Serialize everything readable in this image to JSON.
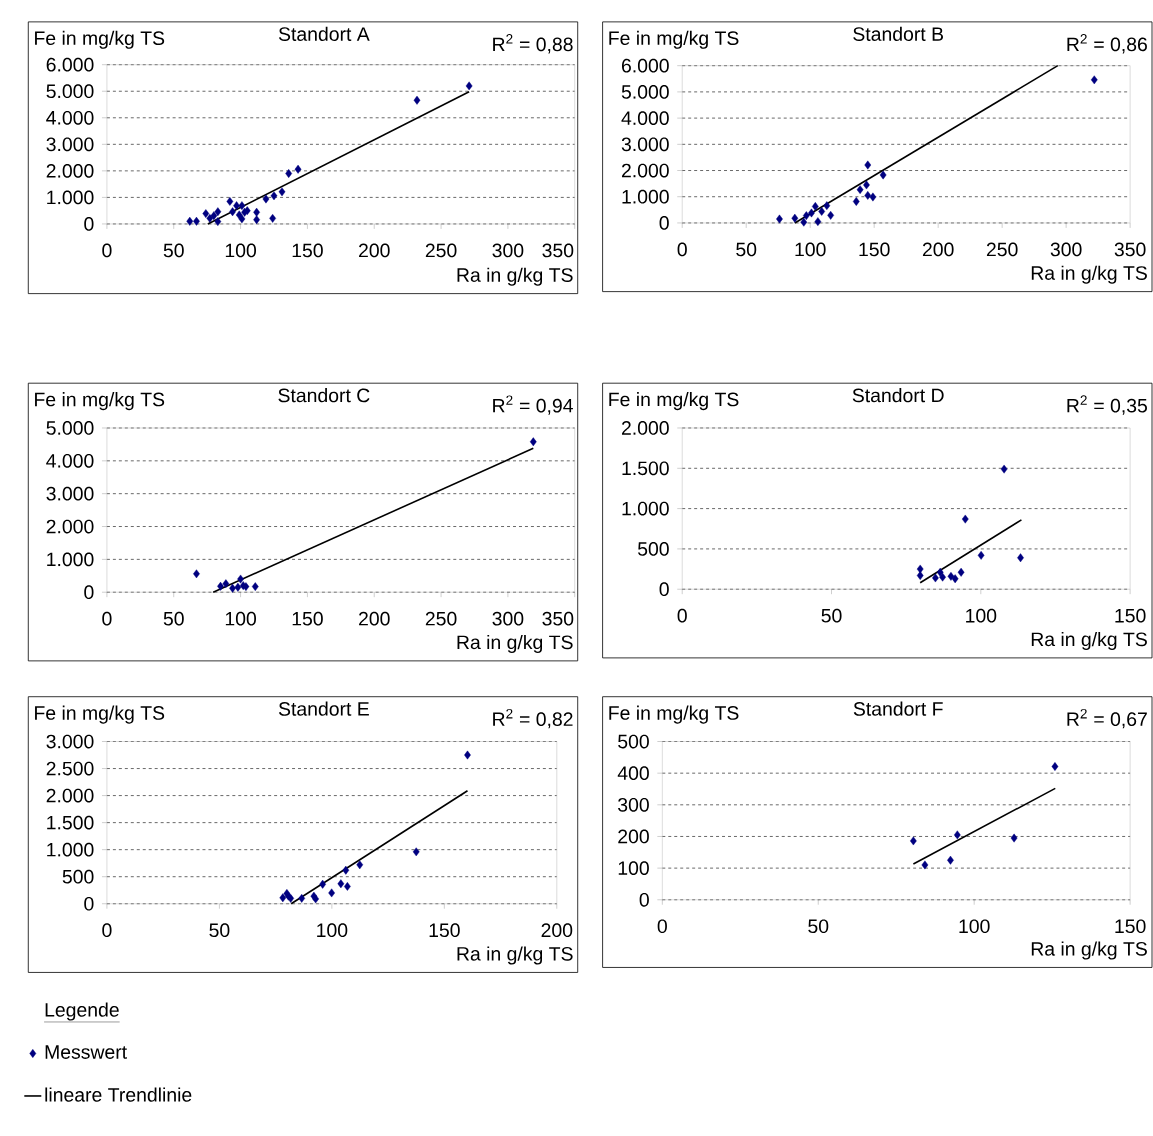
{
  "chart_data": [
    {
      "type": "scatter",
      "title": "Standort A",
      "xlabel": "Ra in g/kg TS",
      "ylabel": "Fe in mg/kg TS",
      "annotations": [
        "R$^{2}$ = 0,88"
      ],
      "legend": "bottom",
      "legend_title": "Legende",
      "grid": "y",
      "xlim": [
        0,
        350
      ],
      "xticks": [
        0,
        50,
        100,
        150,
        200,
        250,
        300,
        350
      ],
      "ylim": [
        0,
        6000
      ],
      "yticks": [
        0,
        {
          "value": 1000,
          "label": "1.000"
        },
        {
          "value": 2000,
          "label": "2.000"
        },
        {
          "value": 3000,
          "label": "3.000"
        },
        {
          "value": 4000,
          "label": "4.000"
        },
        {
          "value": 5000,
          "label": "5.000"
        },
        {
          "value": 6000,
          "label": "6.000"
        }
      ],
      "series": [
        {
          "name": "Messwert",
          "marker": "diamond",
          "color": "#000080",
          "x": [
            62,
            67,
            74,
            77,
            80,
            83,
            83,
            92,
            94,
            97,
            99,
            101,
            101,
            103,
            105,
            112,
            112,
            119,
            124,
            125,
            131,
            136,
            143,
            232,
            271
          ],
          "values": [
            100,
            100,
            390,
            210,
            310,
            460,
            90,
            850,
            460,
            690,
            340,
            690,
            190,
            440,
            500,
            160,
            440,
            940,
            210,
            1060,
            1210,
            1900,
            2060,
            4660,
            5200
          ]
        },
        {
          "name": "lineare Trendlinie",
          "type": "line",
          "color": "#000000",
          "line_style": "solid",
          "x": [
            75.5,
            271
          ],
          "values": [
            0,
            4980
          ]
        }
      ]
    },
    {
      "type": "scatter",
      "title": "Standort B",
      "xlabel": "Ra in g/kg TS",
      "ylabel": "Fe in mg/kg TS",
      "annotations": [
        "R$^{2}$ = 0,86"
      ],
      "grid": "y",
      "xlim": [
        0,
        350
      ],
      "xticks": [
        0,
        50,
        100,
        150,
        200,
        250,
        300,
        350
      ],
      "ylim": [
        0,
        6000
      ],
      "yticks": [
        0,
        {
          "value": 1000,
          "label": "1.000"
        },
        {
          "value": 2000,
          "label": "2.000"
        },
        {
          "value": 3000,
          "label": "3.000"
        },
        {
          "value": 4000,
          "label": "4.000"
        },
        {
          "value": 5000,
          "label": "5.000"
        },
        {
          "value": 6000,
          "label": "6.000"
        }
      ],
      "series": [
        {
          "marker": "diamond",
          "color": "#000080",
          "x": [
            76,
            88,
            95,
            97,
            101,
            104,
            106,
            109,
            113,
            116,
            136,
            139,
            144,
            145,
            145,
            149,
            157,
            322
          ],
          "values": [
            150,
            180,
            30,
            280,
            380,
            630,
            50,
            440,
            660,
            290,
            820,
            1270,
            1450,
            2210,
            1050,
            990,
            1830,
            5460
          ]
        },
        {
          "type": "line",
          "color": "#000000",
          "line_style": "solid",
          "x": [
            88,
            293.5
          ],
          "values": [
            0,
            6000
          ]
        }
      ]
    },
    {
      "type": "scatter",
      "title": "Standort C",
      "xlabel": "Ra in g/kg TS",
      "ylabel": "Fe in mg/kg TS",
      "annotations": [
        "R$^{2}$ = 0,94"
      ],
      "grid": "y",
      "xlim": [
        0,
        350
      ],
      "xticks": [
        0,
        50,
        100,
        150,
        200,
        250,
        300,
        350
      ],
      "ylim": [
        0,
        5000
      ],
      "yticks": [
        0,
        {
          "value": 1000,
          "label": "1.000"
        },
        {
          "value": 2000,
          "label": "2.000"
        },
        {
          "value": 3000,
          "label": "3.000"
        },
        {
          "value": 4000,
          "label": "4.000"
        },
        {
          "value": 5000,
          "label": "5.000"
        }
      ],
      "series": [
        {
          "marker": "diamond",
          "color": "#000080",
          "x": [
            67,
            85,
            89,
            94,
            98,
            100,
            102,
            104,
            111,
            319
          ],
          "values": [
            560,
            180,
            260,
            120,
            150,
            400,
            200,
            170,
            170,
            4580
          ]
        },
        {
          "type": "line",
          "color": "#000000",
          "line_style": "solid",
          "x": [
            79.5,
            319
          ],
          "values": [
            0,
            4380
          ]
        }
      ]
    },
    {
      "type": "scatter",
      "title": "Standort D",
      "xlabel": "Ra in g/kg TS",
      "ylabel": "Fe in mg/kg TS",
      "annotations": [
        "R$^{2}$ = 0,35"
      ],
      "grid": "y",
      "xlim": [
        0,
        150
      ],
      "xticks": [
        0,
        50,
        100,
        150
      ],
      "ylim": [
        0,
        2000
      ],
      "yticks": [
        0,
        500,
        {
          "value": 1000,
          "label": "1.000"
        },
        {
          "value": 1500,
          "label": "1.500"
        },
        {
          "value": 2000,
          "label": "2.000"
        }
      ],
      "series": [
        {
          "marker": "diamond",
          "color": "#000080",
          "x": [
            79.7,
            79.7,
            84.8,
            86.4,
            87.2,
            90,
            91.4,
            93.4,
            94.8,
            100.1,
            107.8,
            113.3
          ],
          "values": [
            250,
            170,
            140,
            210,
            150,
            160,
            130,
            210,
            870,
            420,
            1490,
            390
          ]
        },
        {
          "type": "line",
          "color": "#000000",
          "line_style": "solid",
          "x": [
            79.7,
            113.6
          ],
          "values": [
            80,
            860
          ]
        }
      ]
    },
    {
      "type": "scatter",
      "title": "Standort E",
      "xlabel": "Ra in g/kg TS",
      "ylabel": "Fe in mg/kg TS",
      "annotations": [
        "R$^{2}$ = 0,82"
      ],
      "grid": "y",
      "xlim": [
        0,
        200
      ],
      "xticks": [
        0,
        50,
        100,
        150,
        200
      ],
      "ylim": [
        0,
        3000
      ],
      "yticks": [
        0,
        500,
        {
          "value": 1000,
          "label": "1.000"
        },
        {
          "value": 1500,
          "label": "1.500"
        },
        {
          "value": 2000,
          "label": "2.000"
        },
        {
          "value": 2500,
          "label": "2.500"
        },
        {
          "value": 3000,
          "label": "3.000"
        }
      ],
      "series": [
        {
          "marker": "diamond",
          "color": "#000080",
          "x": [
            78.2,
            80,
            80.7,
            81.7,
            86.6,
            92,
            92.8,
            95.9,
            99.9,
            104,
            106.2,
            106.9,
            112.4,
            137.5,
            160.3
          ],
          "values": [
            110,
            190,
            140,
            100,
            100,
            140,
            90,
            360,
            200,
            370,
            620,
            320,
            720,
            960,
            2750
          ]
        },
        {
          "type": "line",
          "color": "#000000",
          "line_style": "solid",
          "x": [
            81.9,
            160.3
          ],
          "values": [
            0,
            2090
          ]
        }
      ]
    },
    {
      "type": "scatter",
      "title": "Standort F",
      "xlabel": "Ra in g/kg TS",
      "ylabel": "Fe in mg/kg TS",
      "annotations": [
        "R$^{2}$ = 0,67"
      ],
      "grid": "y",
      "xlim": [
        0,
        150
      ],
      "xticks": [
        0,
        50,
        100,
        150
      ],
      "ylim": [
        0,
        500
      ],
      "yticks": [
        0,
        100,
        200,
        300,
        400,
        500
      ],
      "series": [
        {
          "marker": "diamond",
          "color": "#000080",
          "x": [
            80.5,
            84.2,
            92.4,
            94.6,
            112.8,
            125.9
          ],
          "values": [
            186,
            110,
            125,
            205,
            195,
            421
          ]
        },
        {
          "type": "line",
          "color": "#000000",
          "line_style": "solid",
          "x": [
            80.5,
            126
          ],
          "values": [
            113,
            352
          ]
        }
      ]
    }
  ]
}
